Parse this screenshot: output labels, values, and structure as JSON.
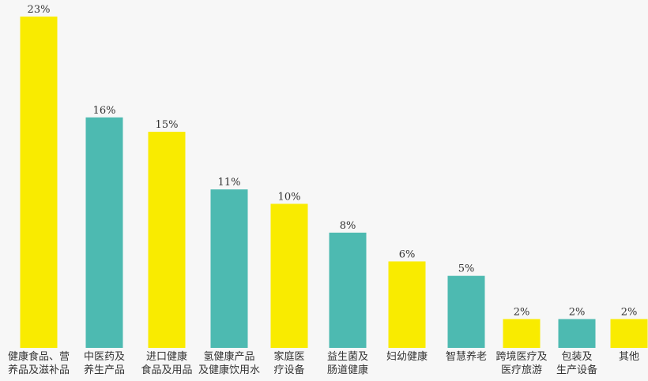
{
  "colors": {
    "yellow": "#f9eb00",
    "teal": "#4dbab1",
    "background": "#f7f7f7"
  },
  "chart_data": {
    "type": "bar",
    "title": "",
    "xlabel": "",
    "ylabel": "",
    "ylim": [
      0,
      23
    ],
    "grid": false,
    "categories": [
      [
        "健康食品、营",
        "养品及滋补品"
      ],
      [
        "中医药及",
        "养生产品"
      ],
      [
        "进口健康",
        "食品及用品"
      ],
      [
        "氢健康产品",
        "及健康饮用水"
      ],
      [
        "家庭医",
        "疗设备"
      ],
      [
        "益生菌及",
        "肠道健康"
      ],
      [
        "妇幼健康"
      ],
      [
        "智慧养老"
      ],
      [
        "跨境医疗及",
        "医疗旅游"
      ],
      [
        "包装及",
        "生产设备"
      ],
      [
        "其他"
      ]
    ],
    "values": [
      23,
      16,
      15,
      11,
      10,
      8,
      6,
      5,
      2,
      2,
      2
    ],
    "value_labels": [
      "23%",
      "16%",
      "15%",
      "11%",
      "10%",
      "8%",
      "6%",
      "5%",
      "2%",
      "2%",
      "2%"
    ],
    "bar_colors": [
      "yellow",
      "teal",
      "yellow",
      "teal",
      "yellow",
      "teal",
      "yellow",
      "teal",
      "yellow",
      "teal",
      "yellow"
    ]
  }
}
